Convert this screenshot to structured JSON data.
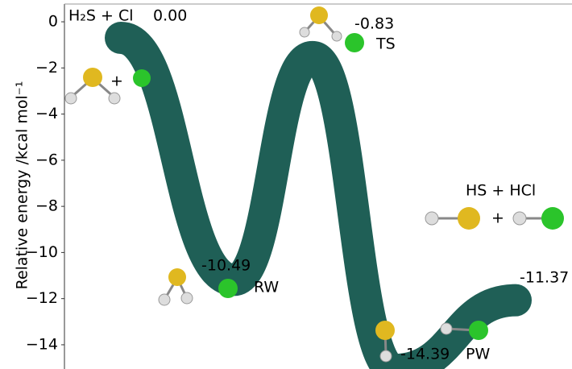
{
  "chart_data": {
    "type": "line",
    "y_label": "Relative energy /kcal mol⁻¹",
    "categories": [
      "H₂S + Cl",
      "RW",
      "TS",
      "PW",
      "HS + HCl"
    ],
    "values": [
      0.0,
      -10.49,
      -0.83,
      -14.39,
      -11.37
    ],
    "value_labels": [
      "0.00",
      "-10.49",
      "-0.83",
      "-14.39",
      "-11.37"
    ],
    "annotations": [
      "+",
      "+"
    ],
    "color": "#1f5f56",
    "ylim": [
      0.77,
      -15.05
    ],
    "yticks": [
      {
        "value": 0,
        "label": "0"
      },
      {
        "value": -2,
        "label": "−2"
      },
      {
        "value": -4,
        "label": "−4"
      },
      {
        "value": -6,
        "label": "−6"
      },
      {
        "value": -8,
        "label": "−8"
      },
      {
        "value": -10,
        "label": "−10"
      },
      {
        "value": -12,
        "label": "−12"
      },
      {
        "value": -14,
        "label": "−14"
      }
    ]
  }
}
